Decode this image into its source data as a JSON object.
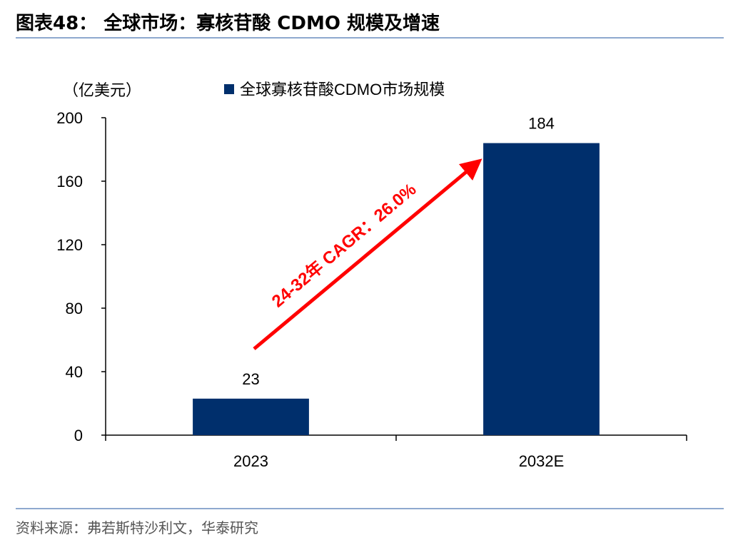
{
  "header": {
    "title": "图表48：  全球市场：寡核苷酸 CDMO 规模及增速"
  },
  "footer": {
    "source": "资料来源：弗若斯特沙利文，华泰研究"
  },
  "chart_data": {
    "type": "bar",
    "title": "",
    "ylabel": "（亿美元）",
    "xlabel": "",
    "categories": [
      "2023",
      "2032E"
    ],
    "series": [
      {
        "name": "全球寡核苷酸CDMO市场规模",
        "values": [
          23,
          184
        ],
        "color": "#002f6c"
      }
    ],
    "data_labels": [
      "23",
      "184"
    ],
    "ylim": [
      0,
      200
    ],
    "yticks": [
      0,
      40,
      80,
      120,
      160,
      200
    ],
    "grid": false,
    "legend_position": "top",
    "annotation": {
      "text": "24-32年 CAGR：26.0%",
      "color": "#ff0000"
    }
  }
}
